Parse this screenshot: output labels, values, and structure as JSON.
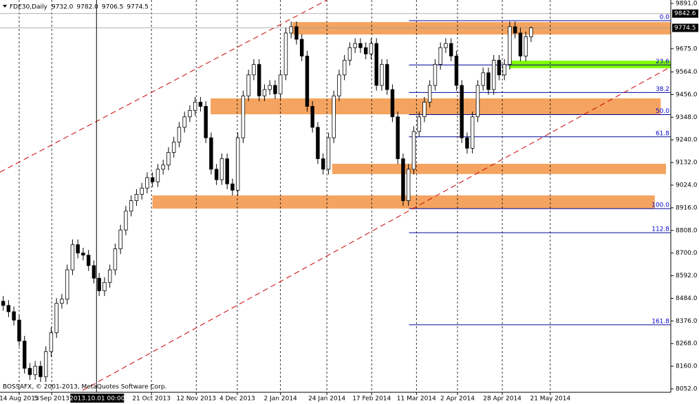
{
  "chart_data": {
    "type": "candlestick",
    "title": "FDE30,Daily",
    "quote": [
      {
        "value": 9732,
        "label": "9732.0"
      },
      {
        "value": 9782,
        "label": "9782.0"
      },
      9706.5,
      9774.5
    ],
    "footer": "BOSSAFX, © 2001-2013, MetaQuotes Software Corp.",
    "xlim": [
      -0.6,
      125.2
    ],
    "ylim": [
      8052,
      9891
    ],
    "yticks": [
      {
        "value": 9891,
        "label": "9891.0"
      },
      {
        "value": 9675,
        "label": "9675.0"
      },
      {
        "value": 9564,
        "label": "9564.0"
      },
      {
        "value": 9456,
        "label": "9456.0"
      },
      {
        "value": 9348,
        "label": "9348.0"
      },
      {
        "value": 9240,
        "label": "9240.0"
      },
      {
        "value": 9132,
        "label": "9132.0"
      },
      {
        "value": 9024,
        "label": "9024.0"
      },
      {
        "value": 8916,
        "label": "8916.0"
      },
      {
        "value": 8808,
        "label": "8808.0"
      },
      {
        "value": 8700,
        "label": "8700.0"
      },
      {
        "value": 8592,
        "label": "8592.0"
      },
      {
        "value": 8484,
        "label": "8484.0"
      },
      {
        "value": 8376,
        "label": "8376.0"
      },
      {
        "value": 8268,
        "label": "8268.0"
      },
      {
        "value": 8160,
        "label": "8160.0"
      },
      {
        "value": 8052,
        "label": "8052.0"
      }
    ],
    "xticks": [
      {
        "value": 3,
        "label": "14 Aug 2013"
      },
      {
        "value": 9.1,
        "label": "5 Sep 2013"
      },
      {
        "value": 27.8,
        "label": "21 Oct 2013"
      },
      {
        "value": 36.2,
        "label": "12 Nov 2013"
      },
      {
        "value": 43.9,
        "label": "4 Dec 2013"
      },
      {
        "value": 52,
        "label": "2 Jan 2014"
      },
      {
        "value": 60.7,
        "label": "24 Jan 2014"
      },
      {
        "value": 69.1,
        "label": "17 Feb 2014"
      },
      {
        "value": 77.5,
        "label": "11 Mar 2014"
      },
      {
        "value": 85.2,
        "label": "2 Apr 2014"
      },
      {
        "value": 93.6,
        "label": "28 Apr 2014"
      },
      {
        "value": 102.6,
        "label": "21 May 2014"
      }
    ],
    "grid": true,
    "bull_color": "#ffffff",
    "bear_color": "#000000",
    "open": [
      8470,
      8450,
      8420,
      8380,
      8280,
      8150,
      8120,
      8160,
      8110,
      8230,
      8320,
      8460,
      8480,
      8620,
      8740,
      8700,
      8690,
      8640,
      8580,
      8520,
      8560,
      8620,
      8720,
      8810,
      8900,
      8950,
      8980,
      9010,
      9060,
      9040,
      9100,
      9120,
      9180,
      9230,
      9300,
      9350,
      9380,
      9420,
      9400,
      9250,
      9100,
      9050,
      9150,
      9030,
      9000,
      9250,
      9450,
      9550,
      9600,
      9450,
      9480,
      9500,
      9460,
      9550,
      9750,
      9780,
      9720,
      9640,
      9400,
      9300,
      9150,
      9100,
      9250,
      9450,
      9550,
      9620,
      9680,
      9700,
      9680,
      9650,
      9700,
      9500,
      9600,
      9480,
      9350,
      9150,
      8950,
      9100,
      9280,
      9350,
      9420,
      9500,
      9600,
      9680,
      9700,
      9640,
      9500,
      9250,
      9200,
      9350,
      9500,
      9560,
      9480,
      9620,
      9550,
      9600,
      9780,
      9750,
      9640,
      9732
    ],
    "high": [
      8495,
      8475,
      8445,
      8405,
      8305,
      8175,
      8185,
      8185,
      8255,
      8345,
      8485,
      8505,
      8645,
      8765,
      8765,
      8725,
      8715,
      8665,
      8605,
      8585,
      8645,
      8745,
      8835,
      8925,
      8975,
      9005,
      9035,
      9085,
      9085,
      9125,
      9145,
      9205,
      9255,
      9325,
      9375,
      9405,
      9445,
      9445,
      9425,
      9275,
      9125,
      9175,
      9175,
      9055,
      9275,
      9475,
      9575,
      9625,
      9625,
      9505,
      9525,
      9525,
      9575,
      9775,
      9805,
      9805,
      9745,
      9665,
      9425,
      9325,
      9175,
      9275,
      9475,
      9575,
      9645,
      9705,
      9725,
      9725,
      9705,
      9725,
      9725,
      9625,
      9625,
      9505,
      9375,
      9175,
      9125,
      9305,
      9375,
      9445,
      9525,
      9625,
      9705,
      9725,
      9725,
      9665,
      9525,
      9275,
      9375,
      9525,
      9585,
      9585,
      9645,
      9645,
      9625,
      9805,
      9805,
      9775,
      9757,
      9782
    ],
    "low": [
      8425,
      8395,
      8355,
      8255,
      8125,
      8095,
      8095,
      8085,
      8085,
      8205,
      8295,
      8435,
      8455,
      8595,
      8675,
      8665,
      8615,
      8555,
      8495,
      8495,
      8535,
      8595,
      8695,
      8785,
      8875,
      8925,
      8955,
      8985,
      9015,
      9015,
      9075,
      9095,
      9155,
      9205,
      9275,
      9325,
      9355,
      9375,
      9225,
      9075,
      9025,
      9025,
      9005,
      8975,
      8975,
      9225,
      9425,
      9525,
      9425,
      9425,
      9455,
      9435,
      9435,
      9525,
      9725,
      9695,
      9615,
      9375,
      9275,
      9125,
      9075,
      9075,
      9225,
      9425,
      9525,
      9595,
      9655,
      9655,
      9625,
      9625,
      9475,
      9475,
      9455,
      9325,
      9125,
      8925,
      8925,
      9075,
      9255,
      9325,
      9395,
      9475,
      9575,
      9655,
      9615,
      9475,
      9225,
      9175,
      9175,
      9325,
      9475,
      9455,
      9455,
      9525,
      9525,
      9575,
      9725,
      9615,
      9615,
      9706.5
    ],
    "close": [
      8450,
      8420,
      8380,
      8280,
      8150,
      8120,
      8160,
      8110,
      8230,
      8320,
      8460,
      8480,
      8620,
      8740,
      8700,
      8690,
      8640,
      8580,
      8520,
      8560,
      8620,
      8720,
      8810,
      8900,
      8950,
      8980,
      9010,
      9060,
      9040,
      9100,
      9120,
      9180,
      9230,
      9300,
      9350,
      9380,
      9420,
      9400,
      9250,
      9100,
      9050,
      9150,
      9030,
      9000,
      9250,
      9450,
      9550,
      9600,
      9450,
      9480,
      9500,
      9460,
      9550,
      9750,
      9780,
      9720,
      9640,
      9400,
      9300,
      9150,
      9100,
      9250,
      9450,
      9550,
      9620,
      9680,
      9700,
      9680,
      9650,
      9700,
      9500,
      9600,
      9480,
      9350,
      9150,
      8950,
      9100,
      9280,
      9350,
      9420,
      9500,
      9600,
      9680,
      9700,
      9640,
      9500,
      9250,
      9200,
      9350,
      9500,
      9560,
      9480,
      9620,
      9550,
      9600,
      9780,
      9750,
      9640,
      9732,
      9774.5
    ],
    "zones": [
      {
        "from": 54.2,
        "to": 125.2,
        "low": 9743,
        "high": 9802,
        "color": "#f4a460"
      },
      {
        "from": 38.9,
        "to": 123.3,
        "low": 9362,
        "high": 9438,
        "color": "#f4a460"
      },
      {
        "from": 61.7,
        "to": 124.3,
        "low": 9077,
        "high": 9126,
        "color": "#f4a460"
      },
      {
        "from": 28.0,
        "to": 122.2,
        "low": 8912,
        "high": 8975,
        "color": "#f4a460"
      },
      {
        "from": 94.9,
        "to": 125.2,
        "low": 9582,
        "high": 9618,
        "color": "#7fff00"
      }
    ],
    "channel": {
      "color": "#cc0000",
      "lines": [
        {
          "x": [
            -0.6,
            60.7
          ],
          "y": [
            9086,
            9907
          ]
        },
        {
          "x": [
            14.9,
            125.2
          ],
          "y": [
            8045,
            9589
          ]
        }
      ]
    },
    "fibonacci": {
      "from": 76.1,
      "high": 9809,
      "low": 8912,
      "color": "#000099",
      "levels": [
        {
          "value": 0,
          "label": "0.0"
        },
        23.6,
        38.2,
        {
          "value": 50,
          "label": "50.0"
        },
        61.8,
        {
          "value": 100,
          "label": "100.0"
        },
        112.8,
        161.8
      ]
    },
    "bid": 9774.5,
    "crosshair": {
      "price": 9842.6,
      "index": 17.5,
      "time_label": "2013.10.01 00:00"
    }
  }
}
